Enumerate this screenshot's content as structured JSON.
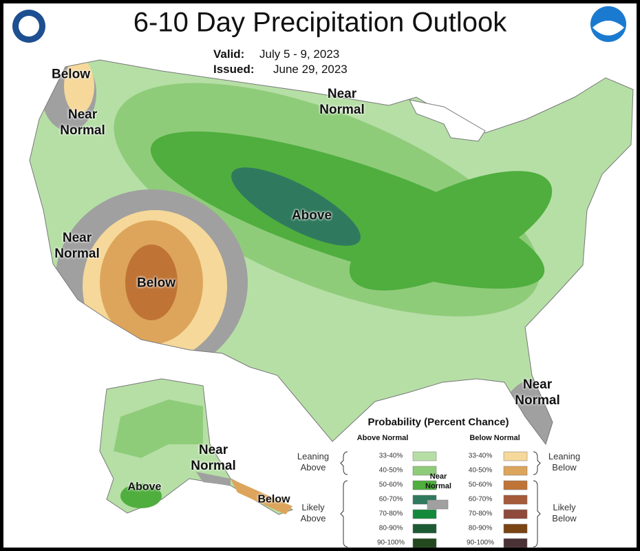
{
  "header": {
    "title": "6-10 Day Precipitation Outlook",
    "valid_label": "Valid:",
    "valid": "July 5 - 9, 2023",
    "issued_label": "Issued:",
    "issued": "June 29, 2023"
  },
  "map_labels": [
    "Below",
    "Near Normal",
    "Near Normal",
    "Above",
    "Near Normal",
    "Below",
    "Near Normal",
    "Near Normal",
    "Above",
    "Below"
  ],
  "legend": {
    "title": "Probability (Percent Chance)",
    "above_header": "Above Normal",
    "below_header": "Below Normal",
    "leaning_above": "Leaning Above",
    "likely_above": "Likely Above",
    "leaning_below": "Leaning Below",
    "likely_below": "Likely Below",
    "near_normal": "Near Normal",
    "near_normal_color": "#a0a0a0",
    "above": [
      {
        "range": "33-40%",
        "color": "#b6dfa6"
      },
      {
        "range": "40-50%",
        "color": "#8fcc7a"
      },
      {
        "range": "50-60%",
        "color": "#4fae3e"
      },
      {
        "range": "60-70%",
        "color": "#2f7a5e"
      },
      {
        "range": "70-80%",
        "color": "#138a3b"
      },
      {
        "range": "80-90%",
        "color": "#1c5a33"
      },
      {
        "range": "90-100%",
        "color": "#234a1e"
      }
    ],
    "below": [
      {
        "range": "33-40%",
        "color": "#f5d89a"
      },
      {
        "range": "40-50%",
        "color": "#dda55b"
      },
      {
        "range": "50-60%",
        "color": "#bf7436"
      },
      {
        "range": "60-70%",
        "color": "#a55a3a"
      },
      {
        "range": "70-80%",
        "color": "#8f4a3c"
      },
      {
        "range": "80-90%",
        "color": "#7a4413"
      },
      {
        "range": "90-100%",
        "color": "#4a3236"
      }
    ]
  }
}
